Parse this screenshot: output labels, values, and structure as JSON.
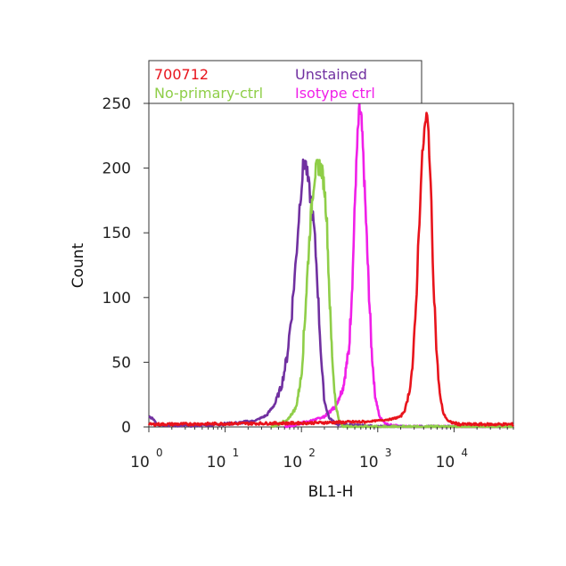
{
  "chart_data": {
    "type": "line",
    "title": "",
    "xlabel": "BL1-H",
    "ylabel": "Count",
    "xscale": "log",
    "xlim": [
      1,
      60000
    ],
    "ylim": [
      0,
      250
    ],
    "grid": false,
    "legend_position": "top-left",
    "x_ticks": [
      {
        "value": 1,
        "base": "10",
        "exp": "0"
      },
      {
        "value": 10,
        "base": "10",
        "exp": "1"
      },
      {
        "value": 100,
        "base": "10",
        "exp": "2"
      },
      {
        "value": 1000,
        "base": "10",
        "exp": "3"
      },
      {
        "value": 10000,
        "base": "10",
        "exp": "4"
      }
    ],
    "y_ticks": [
      {
        "value": 0,
        "label": "0"
      },
      {
        "value": 50,
        "label": "50"
      },
      {
        "value": 100,
        "label": "100"
      },
      {
        "value": 150,
        "label": "150"
      },
      {
        "value": 200,
        "label": "200"
      },
      {
        "value": 250,
        "label": "250"
      }
    ],
    "series": [
      {
        "name": "700712",
        "color": "#e8141c",
        "points": [
          [
            1,
            2
          ],
          [
            100,
            3
          ],
          [
            700,
            4
          ],
          [
            1500,
            6
          ],
          [
            2000,
            8
          ],
          [
            2300,
            14
          ],
          [
            2600,
            28
          ],
          [
            2900,
            50
          ],
          [
            3150,
            90
          ],
          [
            3400,
            140
          ],
          [
            3650,
            185
          ],
          [
            3900,
            215
          ],
          [
            4150,
            232
          ],
          [
            4400,
            240
          ],
          [
            4650,
            226
          ],
          [
            4900,
            195
          ],
          [
            5200,
            140
          ],
          [
            5600,
            90
          ],
          [
            6000,
            50
          ],
          [
            6600,
            22
          ],
          [
            7300,
            10
          ],
          [
            8500,
            4
          ],
          [
            12000,
            2
          ],
          [
            60000,
            2
          ]
        ]
      },
      {
        "name": "Unstained",
        "color": "#7030a0",
        "points": [
          [
            1,
            8
          ],
          [
            1.15,
            6
          ],
          [
            1.3,
            2
          ],
          [
            3,
            1
          ],
          [
            8,
            2
          ],
          [
            15,
            3
          ],
          [
            25,
            5
          ],
          [
            35,
            9
          ],
          [
            45,
            18
          ],
          [
            55,
            32
          ],
          [
            65,
            55
          ],
          [
            75,
            90
          ],
          [
            85,
            130
          ],
          [
            95,
            172
          ],
          [
            105,
            200
          ],
          [
            112,
            206
          ],
          [
            122,
            190
          ],
          [
            135,
            172
          ],
          [
            148,
            150
          ],
          [
            160,
            118
          ],
          [
            172,
            80
          ],
          [
            185,
            45
          ],
          [
            200,
            20
          ],
          [
            230,
            7
          ],
          [
            300,
            2
          ],
          [
            1000,
            0
          ],
          [
            60000,
            0
          ]
        ]
      },
      {
        "name": "No-primary-ctrl",
        "color": "#8fce48",
        "points": [
          [
            40,
            0
          ],
          [
            65,
            5
          ],
          [
            85,
            15
          ],
          [
            100,
            40
          ],
          [
            110,
            80
          ],
          [
            120,
            120
          ],
          [
            130,
            155
          ],
          [
            140,
            180
          ],
          [
            150,
            195
          ],
          [
            160,
            200
          ],
          [
            172,
            202
          ],
          [
            185,
            198
          ],
          [
            200,
            185
          ],
          [
            215,
            160
          ],
          [
            230,
            110
          ],
          [
            245,
            70
          ],
          [
            262,
            40
          ],
          [
            280,
            18
          ],
          [
            310,
            5
          ],
          [
            360,
            0
          ],
          [
            60000,
            0
          ]
        ]
      },
      {
        "name": "Isotype ctrl",
        "color": "#f01fe8",
        "points": [
          [
            60,
            0
          ],
          [
            120,
            4
          ],
          [
            200,
            8
          ],
          [
            280,
            16
          ],
          [
            350,
            30
          ],
          [
            420,
            60
          ],
          [
            470,
            120
          ],
          [
            510,
            185
          ],
          [
            545,
            225
          ],
          [
            575,
            245
          ],
          [
            610,
            238
          ],
          [
            650,
            205
          ],
          [
            700,
            160
          ],
          [
            760,
            110
          ],
          [
            830,
            60
          ],
          [
            920,
            25
          ],
          [
            1050,
            8
          ],
          [
            1300,
            2
          ],
          [
            2000,
            0
          ],
          [
            60000,
            0
          ]
        ]
      }
    ]
  }
}
